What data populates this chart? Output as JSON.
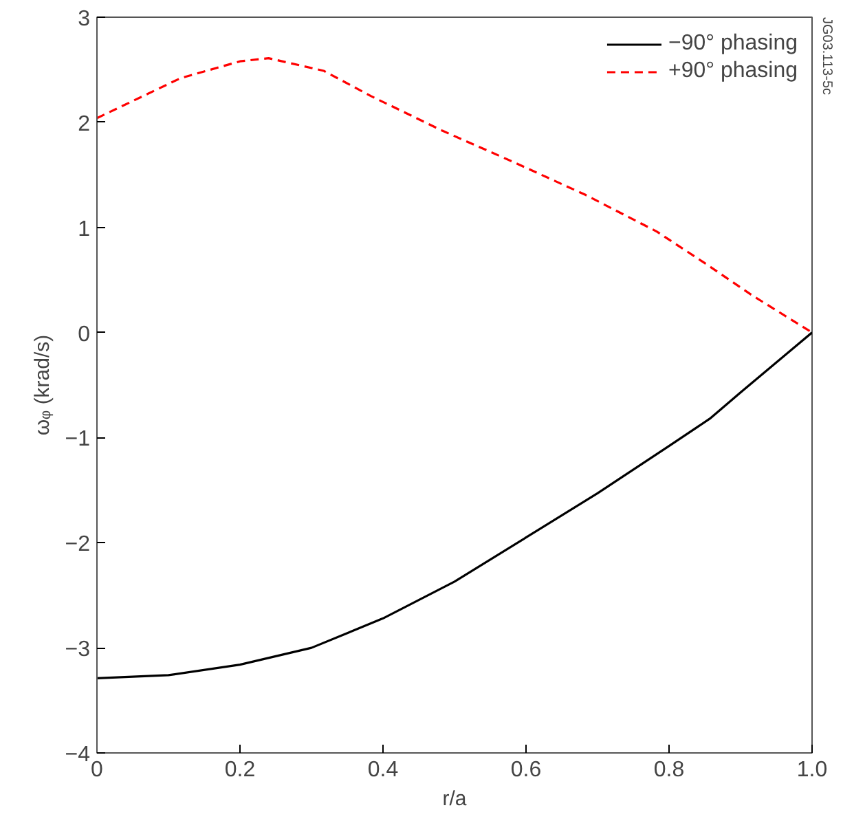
{
  "chart_data": {
    "type": "line",
    "xlabel": "r/a",
    "ylabel": "ωᵩ (krad/s)",
    "xlim": [
      0,
      1.0
    ],
    "xticks": [
      0,
      0.2,
      0.4,
      0.6,
      0.8,
      {
        "value": 1.0,
        "label": "1.0"
      }
    ],
    "ylim": [
      -4,
      3
    ],
    "yticks": [
      -4,
      -3,
      -2,
      -1,
      0,
      1,
      2,
      3
    ],
    "grid": false,
    "legend": "top right",
    "marker": "none",
    "annotations": [
      "JG03.113-5c"
    ],
    "series": [
      {
        "name": "−90° phasing",
        "color": "#000000",
        "line_style": "solid",
        "x": [
          0,
          0.1,
          0.2,
          0.3,
          0.4,
          0.5,
          0.6,
          0.7,
          0.8,
          0.857,
          0.9,
          1.0
        ],
        "values": [
          -3.29,
          -3.26,
          -3.16,
          -3.0,
          -2.72,
          -2.37,
          -1.95,
          -1.53,
          -1.08,
          -0.82,
          -0.57,
          0
        ]
      },
      {
        "name": "+90° phasing",
        "color": "#ff0000",
        "line_style": "dashed",
        "x": [
          0,
          0.117,
          0.2,
          0.24,
          0.317,
          0.383,
          0.483,
          0.583,
          0.683,
          0.783,
          0.85,
          0.917,
          1.0
        ],
        "values": [
          2.04,
          2.42,
          2.58,
          2.61,
          2.49,
          2.25,
          1.92,
          1.62,
          1.31,
          0.96,
          0.66,
          0.35,
          0
        ]
      }
    ]
  }
}
